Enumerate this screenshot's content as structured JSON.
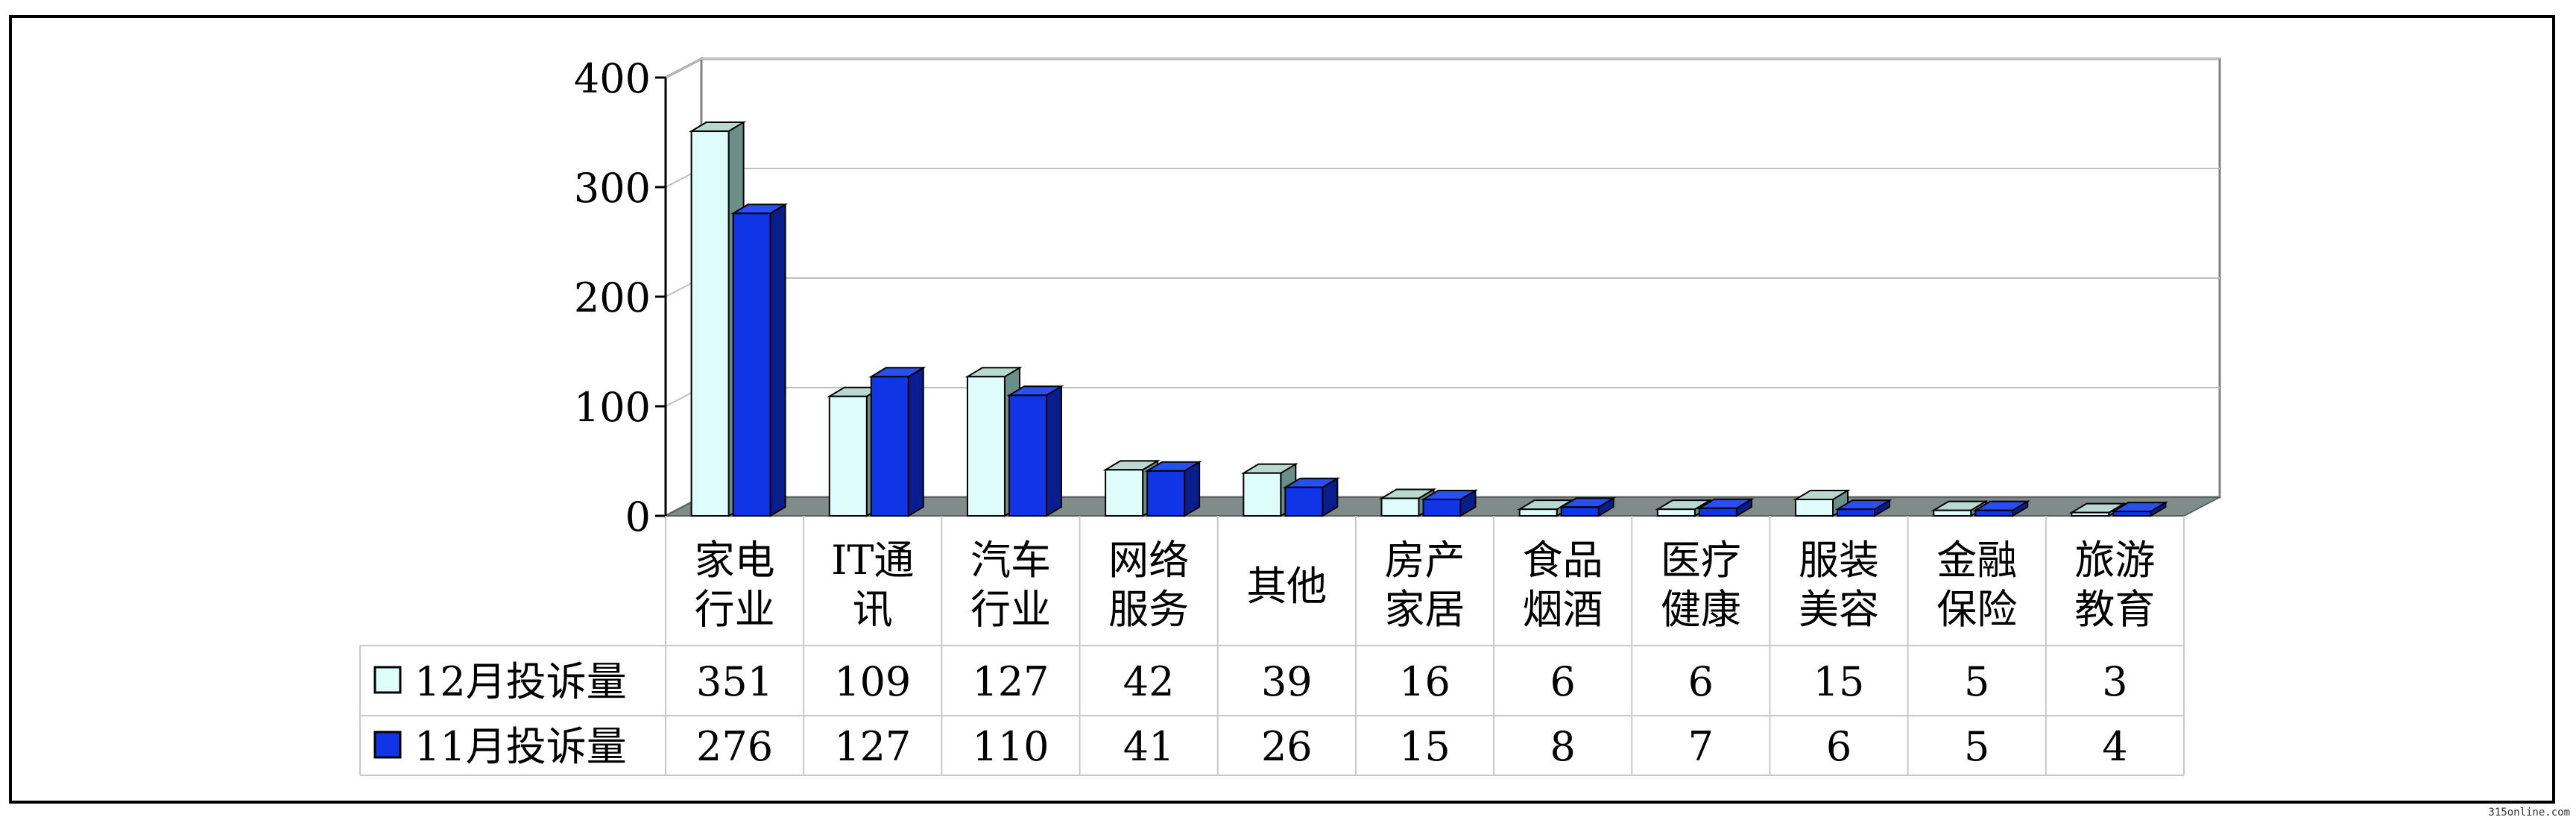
{
  "chart_data": {
    "type": "bar",
    "categories": [
      [
        "家电",
        "行业"
      ],
      [
        "IT通",
        "讯"
      ],
      [
        "汽车",
        "行业"
      ],
      [
        "网络",
        "服务"
      ],
      [
        "其他"
      ],
      [
        "房产",
        "家居"
      ],
      [
        "食品",
        "烟酒"
      ],
      [
        "医疗",
        "健康"
      ],
      [
        "服装",
        "美容"
      ],
      [
        "金融",
        "保险"
      ],
      [
        "旅游",
        "教育"
      ]
    ],
    "series": [
      {
        "name": "12月投诉量",
        "values": [
          351,
          109,
          127,
          42,
          39,
          16,
          6,
          6,
          15,
          5,
          3
        ],
        "color": "#ddfcfa"
      },
      {
        "name": "11月投诉量",
        "values": [
          276,
          127,
          110,
          41,
          26,
          15,
          8,
          7,
          6,
          5,
          4
        ],
        "color": "#1035e6"
      }
    ],
    "ylim": [
      0,
      400
    ],
    "yticks": [
      0,
      100,
      200,
      300,
      400
    ],
    "grid": true,
    "legend": "data-table"
  },
  "watermark": "315online.com"
}
